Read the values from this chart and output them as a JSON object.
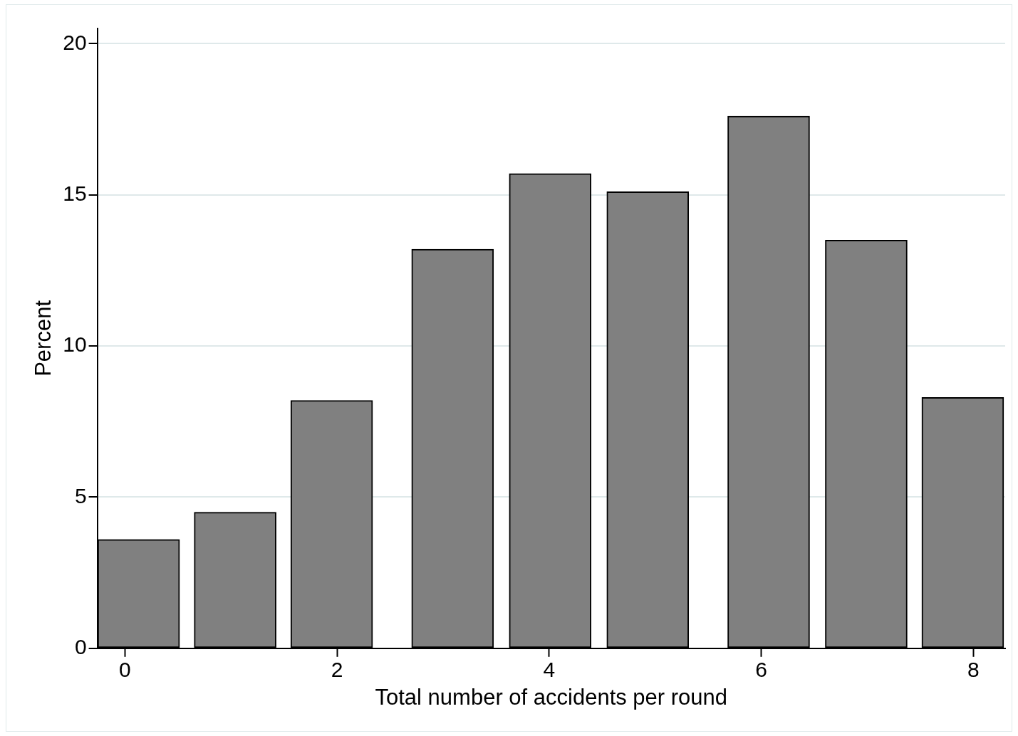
{
  "chart_data": {
    "type": "bar",
    "xlabel": "Total number of accidents per round",
    "ylabel": "Percent",
    "x": [
      0.13,
      1.04,
      1.95,
      3.09,
      4.01,
      4.93,
      6.07,
      6.99,
      7.9
    ],
    "values": [
      3.6,
      4.5,
      8.2,
      13.2,
      15.7,
      15.1,
      17.6,
      13.5,
      8.3
    ],
    "color": "#808080",
    "xlim": [
      -0.26,
      8.3
    ],
    "xticks": [
      0,
      2,
      4,
      6,
      8
    ],
    "ylim": [
      0,
      20.5
    ],
    "yticks": [
      0,
      5,
      10,
      15,
      20
    ],
    "grid": "y",
    "legend": false
  }
}
